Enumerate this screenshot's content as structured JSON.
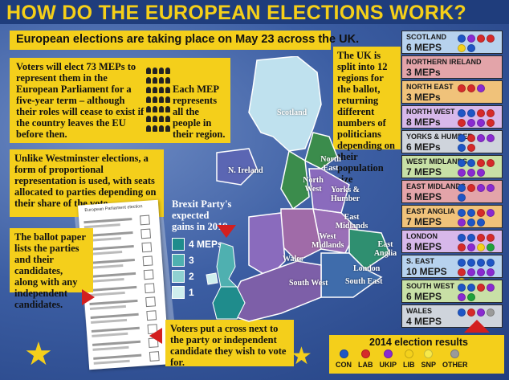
{
  "title": "HOW DO THE EUROPEAN ELECTIONS WORK?",
  "date_text": "European elections are taking place on May 23 across the UK.",
  "meps_text": "Voters will elect 73 MEPs to represent them in the European Parliament for a five-year term – although their roles will cease to exist if the country leaves the EU before then.",
  "mep_represent_text": "Each MEP represents all the people in their region.",
  "westminster_text": "Unlike Westminster elections, a form of proportional representation is used, with seats allocated to parties depending on their share of the vote.",
  "ballot_text": "The ballot paper lists the parties and their candidates, along with any independent candidates.",
  "ballot_header": "European Parliament election",
  "cross_text": "Voters put a cross next to the party or independent candidate they wish to vote for.",
  "regions_text": "The UK is split into 12 regions for the ballot, returning different numbers of politicians depending on their population size",
  "brexit_title": "Brexit Party's expected gains in 2019",
  "brexit_legend": [
    {
      "label": "4 MEPs",
      "color": "#1f8c8c"
    },
    {
      "label": "3",
      "color": "#4fb0b0"
    },
    {
      "label": "2",
      "color": "#8fd1d1"
    },
    {
      "label": "1",
      "color": "#cfeeee"
    }
  ],
  "map_labels": {
    "scotland": "Scotland",
    "ni": "N. Ireland",
    "north_east": "North East",
    "north_west": "North West",
    "yorks": "Yorks & Humber",
    "east_mid": "East Midlands",
    "west_mid": "West Midlands",
    "wales": "Wales",
    "east_anglia": "East Anglia",
    "london": "London",
    "south_east": "South East",
    "south_west": "South West"
  },
  "regions": [
    {
      "name": "SCOTLAND",
      "count": "6 MEPS",
      "bg": "#b7d2ee",
      "dots": [
        "#1e56c6",
        "#8a2ad1",
        "#d62a2a",
        "#d62a2a",
        "#f4d11c",
        "#1e56c6"
      ]
    },
    {
      "name": "NORTHERN IRELAND",
      "count": "3 MEPs",
      "bg": "#e3a4a9",
      "dots": []
    },
    {
      "name": "NORTH EAST",
      "count": "3 MEPs",
      "bg": "#f0c27a",
      "dots": [
        "#d62a2a",
        "#d62a2a",
        "#8a2ad1"
      ]
    },
    {
      "name": "NORTH WEST",
      "count": "8 MEPs",
      "bg": "#d7b8ea",
      "dots": [
        "#1e56c6",
        "#1e56c6",
        "#d62a2a",
        "#d62a2a",
        "#d62a2a",
        "#8a2ad1",
        "#8a2ad1",
        "#d62a2a"
      ]
    },
    {
      "name": "YORKS & HUMBER",
      "count": "6 MEPs",
      "bg": "#cfd4dc",
      "dots": [
        "#1e56c6",
        "#d62a2a",
        "#8a2ad1",
        "#8a2ad1",
        "#1e56c6",
        "#d62a2a"
      ]
    },
    {
      "name": "WEST MIDLANDS",
      "count": "7 MEPS",
      "bg": "#c8e0a6",
      "dots": [
        "#1e56c6",
        "#1e56c6",
        "#d62a2a",
        "#d62a2a",
        "#8a2ad1",
        "#8a2ad1",
        "#8a2ad1"
      ]
    },
    {
      "name": "EAST MIDLANDS",
      "count": "5 MEPS",
      "bg": "#e3a4a9",
      "dots": [
        "#1e56c6",
        "#d62a2a",
        "#8a2ad1",
        "#8a2ad1",
        "#1e56c6"
      ]
    },
    {
      "name": "EAST ANGLIA",
      "count": "7 MEPS",
      "bg": "#f0c27a",
      "dots": [
        "#1e56c6",
        "#1e56c6",
        "#d62a2a",
        "#8a2ad1",
        "#8a2ad1",
        "#1e56c6",
        "#1e56c6"
      ]
    },
    {
      "name": "LONDON",
      "count": "8 MEPS",
      "bg": "#d7b8ea",
      "dots": [
        "#1e56c6",
        "#1e56c6",
        "#d62a2a",
        "#d62a2a",
        "#d62a2a",
        "#8a2ad1",
        "#f4d11c",
        "#1fa23a"
      ]
    },
    {
      "name": "S. EAST",
      "count": "10 MEPS",
      "bg": "#b7d2ee",
      "dots": [
        "#1e56c6",
        "#1e56c6",
        "#1e56c6",
        "#1e56c6",
        "#d62a2a",
        "#8a2ad1",
        "#8a2ad1",
        "#8a2ad1",
        "#f4d11c",
        "#1fa23a"
      ]
    },
    {
      "name": "SOUTH WEST",
      "count": "6 MEPS",
      "bg": "#c8e0a6",
      "dots": [
        "#1e56c6",
        "#1e56c6",
        "#d62a2a",
        "#8a2ad1",
        "#8a2ad1",
        "#1fa23a"
      ]
    },
    {
      "name": "WALES",
      "count": "4 MEPS",
      "bg": "#cfd4dc",
      "dots": [
        "#1e56c6",
        "#d62a2a",
        "#8a2ad1",
        "#9a9a9a"
      ]
    }
  ],
  "results_title": "2014 election results",
  "results": [
    {
      "label": "CON",
      "color": "#1e56c6"
    },
    {
      "label": "LAB",
      "color": "#d62a2a"
    },
    {
      "label": "UKIP",
      "color": "#8a2ad1"
    },
    {
      "label": "LIB",
      "color": "#f4d11c"
    },
    {
      "label": "SNP",
      "color": "#f7e94a"
    },
    {
      "label": "OTHER",
      "color": "#9a9a9a"
    }
  ]
}
